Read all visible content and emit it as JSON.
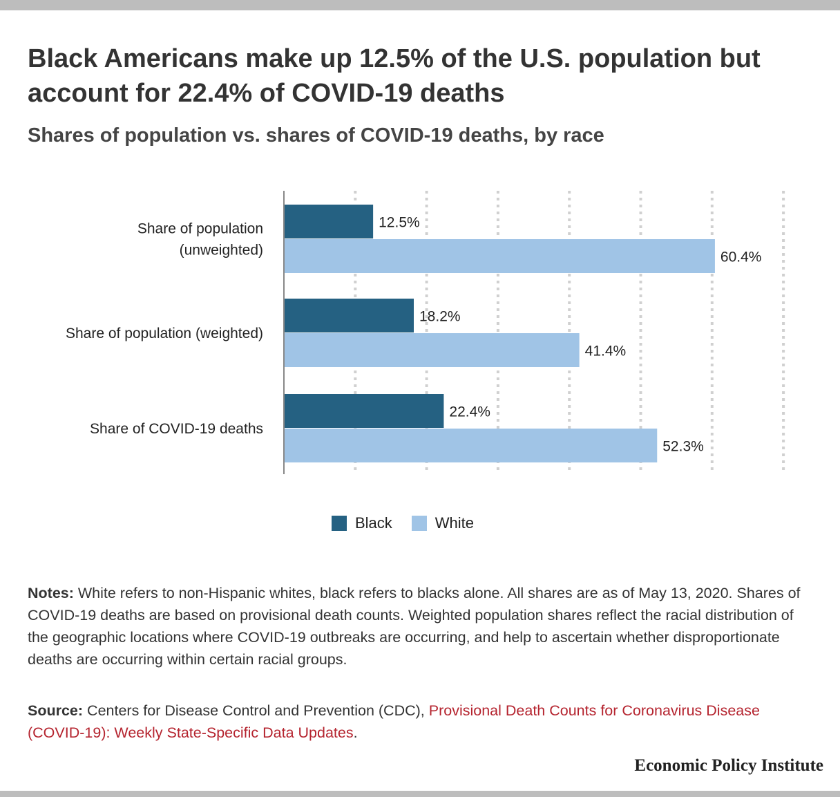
{
  "header": {
    "title": "Black Americans make up 12.5% of the U.S. population but account for 22.4% of COVID-19 deaths",
    "subtitle": "Shares of population vs. shares of COVID-19 deaths, by race"
  },
  "chart_data": {
    "type": "bar",
    "orientation": "horizontal",
    "categories": [
      [
        "Share of population",
        "(unweighted)"
      ],
      [
        "Share of population (weighted)"
      ],
      [
        "Share of COVID-19 deaths"
      ]
    ],
    "series": [
      {
        "name": "Black",
        "values": [
          12.5,
          18.2,
          22.4
        ],
        "labels": [
          "12.5%",
          "18.2%",
          "22.4%"
        ],
        "color": "#256182"
      },
      {
        "name": "White",
        "values": [
          60.4,
          41.4,
          52.3
        ],
        "labels": [
          "60.4%",
          "41.4%",
          "52.3%"
        ],
        "color": "#a0c4e6"
      }
    ],
    "xlim": [
      0,
      70
    ],
    "grid": true,
    "legend_position": "bottom-center"
  },
  "legend": {
    "items": [
      {
        "label": "Black",
        "color": "#256182"
      },
      {
        "label": "White",
        "color": "#a0c4e6"
      }
    ]
  },
  "notes": {
    "lead": "Notes:",
    "text": " White refers to non-Hispanic whites, black refers to blacks alone. All shares are as of May 13, 2020. Shares of COVID-19 deaths are based on provisional death counts. Weighted population shares reflect the racial distribution of the geographic locations where COVID-19 outbreaks are occurring, and help to ascertain whether disproportionate deaths are occurring within certain racial groups."
  },
  "source": {
    "lead": "Source:",
    "text": " Centers for Disease Control and Prevention (CDC), ",
    "link_text": "Provisional Death Counts for Coronavirus Disease (COVID-19): Weekly State-Specific Data Updates",
    "end": "."
  },
  "footer": {
    "brand": "Economic Policy Institute"
  },
  "colors": {
    "accent_link": "#b5242f",
    "frame_bar": "#bdbdbd"
  }
}
